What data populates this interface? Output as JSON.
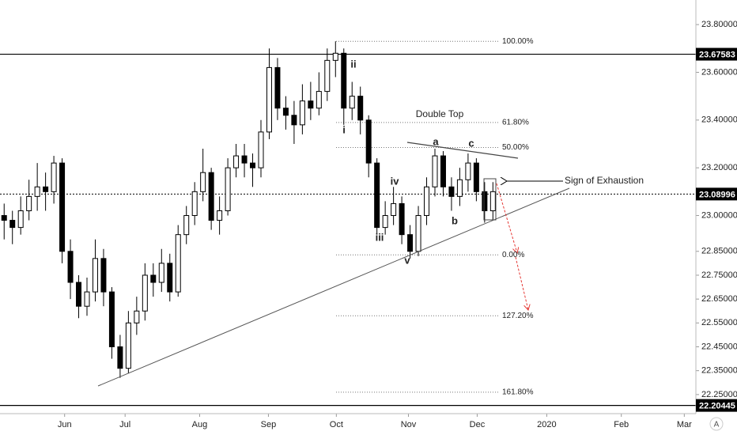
{
  "chart_data": {
    "type": "candlestick",
    "candles": [
      [
        23.0,
        23.05,
        22.9,
        22.98
      ],
      [
        22.98,
        23.02,
        22.88,
        22.95
      ],
      [
        22.95,
        23.08,
        22.92,
        23.02
      ],
      [
        23.02,
        23.15,
        22.98,
        23.08
      ],
      [
        23.08,
        23.22,
        23.02,
        23.12
      ],
      [
        23.12,
        23.18,
        23.02,
        23.1
      ],
      [
        23.1,
        23.25,
        23.05,
        23.22
      ],
      [
        23.22,
        23.24,
        22.8,
        22.85
      ],
      [
        22.85,
        22.9,
        22.65,
        22.72
      ],
      [
        22.72,
        22.75,
        22.57,
        22.62
      ],
      [
        22.62,
        22.74,
        22.58,
        22.68
      ],
      [
        22.68,
        22.9,
        22.64,
        22.82
      ],
      [
        22.82,
        22.86,
        22.62,
        22.68
      ],
      [
        22.68,
        22.7,
        22.4,
        22.45
      ],
      [
        22.45,
        22.5,
        22.32,
        22.36
      ],
      [
        22.36,
        22.6,
        22.34,
        22.55
      ],
      [
        22.55,
        22.66,
        22.5,
        22.6
      ],
      [
        22.6,
        22.8,
        22.56,
        22.75
      ],
      [
        22.75,
        22.8,
        22.66,
        22.72
      ],
      [
        22.72,
        22.86,
        22.68,
        22.8
      ],
      [
        22.8,
        22.84,
        22.64,
        22.68
      ],
      [
        22.68,
        22.96,
        22.66,
        22.92
      ],
      [
        22.92,
        23.04,
        22.88,
        23.0
      ],
      [
        23.0,
        23.14,
        22.96,
        23.1
      ],
      [
        23.1,
        23.28,
        23.06,
        23.18
      ],
      [
        23.18,
        23.2,
        22.94,
        22.98
      ],
      [
        22.98,
        23.08,
        22.92,
        23.02
      ],
      [
        23.02,
        23.24,
        23.0,
        23.2
      ],
      [
        23.2,
        23.3,
        23.16,
        23.25
      ],
      [
        23.25,
        23.3,
        23.16,
        23.22
      ],
      [
        23.22,
        23.26,
        23.12,
        23.2
      ],
      [
        23.2,
        23.4,
        23.16,
        23.35
      ],
      [
        23.35,
        23.7,
        23.32,
        23.62
      ],
      [
        23.62,
        23.66,
        23.4,
        23.45
      ],
      [
        23.45,
        23.5,
        23.36,
        23.42
      ],
      [
        23.42,
        23.48,
        23.3,
        23.38
      ],
      [
        23.38,
        23.55,
        23.34,
        23.48
      ],
      [
        23.48,
        23.56,
        23.4,
        23.45
      ],
      [
        23.45,
        23.6,
        23.42,
        23.52
      ],
      [
        23.52,
        23.7,
        23.48,
        23.65
      ],
      [
        23.65,
        23.73,
        23.58,
        23.68
      ],
      [
        23.68,
        23.7,
        23.38,
        23.45
      ],
      [
        23.45,
        23.56,
        23.4,
        23.5
      ],
      [
        23.5,
        23.54,
        23.34,
        23.4
      ],
      [
        23.4,
        23.42,
        23.16,
        23.22
      ],
      [
        23.22,
        23.24,
        22.92,
        22.95
      ],
      [
        22.95,
        23.06,
        22.92,
        23.0
      ],
      [
        23.0,
        23.12,
        22.96,
        23.05
      ],
      [
        23.05,
        23.08,
        22.88,
        22.92
      ],
      [
        22.92,
        22.96,
        22.82,
        22.85
      ],
      [
        22.85,
        23.04,
        22.83,
        23.0
      ],
      [
        23.0,
        23.16,
        22.96,
        23.12
      ],
      [
        23.12,
        23.28,
        23.08,
        23.25
      ],
      [
        23.25,
        23.27,
        23.08,
        23.12
      ],
      [
        23.12,
        23.16,
        23.02,
        23.08
      ],
      [
        23.08,
        23.2,
        23.04,
        23.15
      ],
      [
        23.15,
        23.26,
        23.1,
        23.22
      ],
      [
        23.22,
        23.24,
        23.06,
        23.1
      ],
      [
        23.1,
        23.14,
        22.97,
        23.02
      ],
      [
        23.02,
        23.14,
        22.98,
        23.1
      ]
    ],
    "up_color": "#ffffff",
    "down_color": "#000000",
    "xlim": [
      -0.5,
      83.5
    ],
    "xticks": [
      {
        "value": 7.3,
        "label": "Jun"
      },
      {
        "value": 14.6,
        "label": "Jul"
      },
      {
        "value": 23.6,
        "label": "Aug"
      },
      {
        "value": 31.9,
        "label": "Sep"
      },
      {
        "value": 40.1,
        "label": "Oct"
      },
      {
        "value": 48.8,
        "label": "Nov"
      },
      {
        "value": 57.1,
        "label": "Dec"
      },
      {
        "value": 65.5,
        "label": "2020"
      },
      {
        "value": 74.5,
        "label": "Feb"
      },
      {
        "value": 82.1,
        "label": "Mar"
      }
    ],
    "ylim": [
      22.17,
      23.903
    ],
    "yticks": [
      {
        "value": 23.8,
        "label": "23.80000"
      },
      {
        "value": 23.6,
        "label": "23.60000"
      },
      {
        "value": 23.4,
        "label": "23.40000"
      },
      {
        "value": 23.2,
        "label": "23.20000"
      },
      {
        "value": 23.0,
        "label": "23.00000"
      },
      {
        "value": 22.85,
        "label": "22.85000"
      },
      {
        "value": 22.75,
        "label": "22.75000"
      },
      {
        "value": 22.65,
        "label": "22.65000"
      },
      {
        "value": 22.55,
        "label": "22.55000"
      },
      {
        "value": 22.45,
        "label": "22.45000"
      },
      {
        "value": 22.35,
        "label": "22.35000"
      },
      {
        "value": 22.25,
        "label": "22.25000"
      }
    ],
    "price_lines": [
      {
        "value": 23.67583,
        "label": "23.67583",
        "style": "solid"
      },
      {
        "value": 23.08996,
        "label": "23.08996",
        "style": "dotted"
      },
      {
        "value": 22.20445,
        "label": "22.20445",
        "style": "solid"
      }
    ],
    "fib_levels": [
      {
        "value": 23.73,
        "label": "100.00%"
      },
      {
        "value": 23.39,
        "label": "61.80%"
      },
      {
        "value": 23.285,
        "label": "50.00%"
      },
      {
        "value": 22.835,
        "label": "0.00%"
      },
      {
        "value": 22.58,
        "label": "127.20%"
      },
      {
        "value": 22.26,
        "label": "161.80%"
      }
    ],
    "annotations": {
      "waves": [
        "i",
        "ii",
        "iii",
        "iv",
        "v",
        "a",
        "b",
        "c"
      ],
      "pattern": "Double Top",
      "note": "Sign of Exhaustion"
    },
    "scale_badge": "A"
  }
}
